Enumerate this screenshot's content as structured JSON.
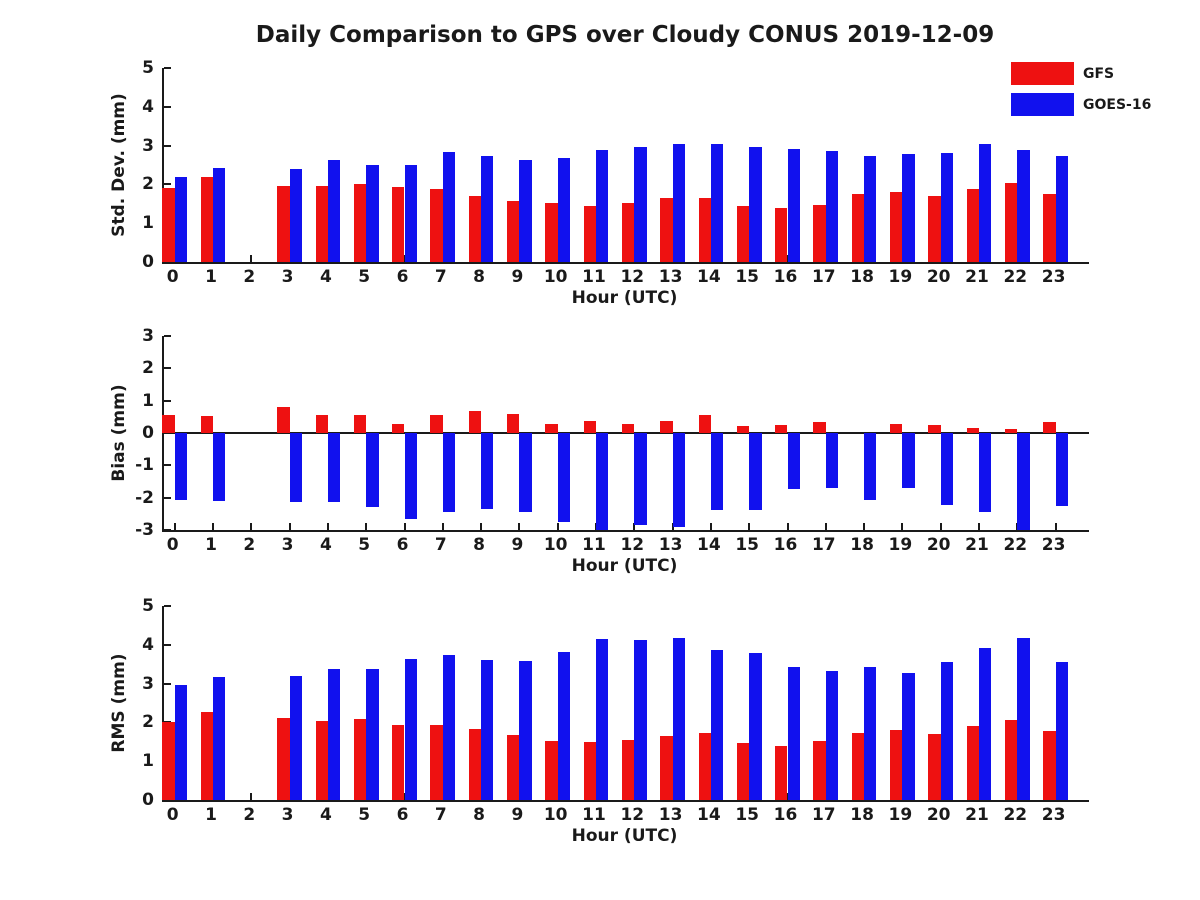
{
  "title": "Daily Comparison to GPS over Cloudy CONUS 2019-12-09",
  "legend": {
    "position": "top-right",
    "items": [
      {
        "label": "GFS",
        "color": "#ee1111"
      },
      {
        "label": "GOES-16",
        "color": "#1111ee"
      }
    ]
  },
  "colors": {
    "gfs_red": "#ee1111",
    "goes_blue": "#1111ee",
    "axis": "#1a1a1a"
  },
  "chart_data": [
    {
      "type": "bar",
      "panel": "std_dev",
      "ylabel": "Std. Dev. (mm)",
      "xlabel": "Hour (UTC)",
      "ylim": [
        0,
        5
      ],
      "yticks": [
        0,
        1,
        2,
        3,
        4,
        5
      ],
      "grid": false,
      "categories": [
        0,
        1,
        2,
        3,
        4,
        5,
        6,
        7,
        8,
        9,
        10,
        11,
        12,
        13,
        14,
        15,
        16,
        17,
        18,
        19,
        20,
        21,
        22,
        23
      ],
      "series": [
        {
          "name": "GFS",
          "color": "#ee1111",
          "values": [
            1.9,
            2.2,
            null,
            1.95,
            1.95,
            2.0,
            1.93,
            1.87,
            1.71,
            1.57,
            1.52,
            1.44,
            1.52,
            1.64,
            1.64,
            1.44,
            1.38,
            1.46,
            1.75,
            1.8,
            1.7,
            1.87,
            2.04,
            1.75
          ]
        },
        {
          "name": "GOES-16",
          "color": "#1111ee",
          "values": [
            2.2,
            2.42,
            null,
            2.4,
            2.64,
            2.5,
            2.5,
            2.83,
            2.73,
            2.63,
            2.68,
            2.88,
            2.97,
            3.03,
            3.05,
            2.96,
            2.92,
            2.87,
            2.72,
            2.79,
            2.8,
            3.03,
            2.88,
            2.74
          ]
        }
      ]
    },
    {
      "type": "bar",
      "panel": "bias",
      "ylabel": "Bias (mm)",
      "xlabel": "Hour (UTC)",
      "ylim": [
        -3,
        3
      ],
      "yticks": [
        3,
        2,
        1,
        0,
        -1,
        -2,
        -3
      ],
      "grid": false,
      "categories": [
        0,
        1,
        2,
        3,
        4,
        5,
        6,
        7,
        8,
        9,
        10,
        11,
        12,
        13,
        14,
        15,
        16,
        17,
        18,
        19,
        20,
        21,
        22,
        23
      ],
      "series": [
        {
          "name": "GFS",
          "color": "#ee1111",
          "values": [
            0.57,
            0.54,
            null,
            0.8,
            0.55,
            0.57,
            0.27,
            0.57,
            0.67,
            0.6,
            0.28,
            0.36,
            0.27,
            0.36,
            0.55,
            0.23,
            0.25,
            0.34,
            0.0,
            0.27,
            0.24,
            0.16,
            0.13,
            0.35
          ]
        },
        {
          "name": "GOES-16",
          "color": "#1111ee",
          "values": [
            -2.08,
            -2.1,
            null,
            -2.13,
            -2.13,
            -2.28,
            -2.65,
            -2.45,
            -2.36,
            -2.44,
            -2.76,
            -3.0,
            -2.84,
            -2.9,
            -2.38,
            -2.38,
            -1.74,
            -1.7,
            -2.08,
            -1.7,
            -2.24,
            -2.45,
            -3.0,
            -2.27
          ]
        }
      ]
    },
    {
      "type": "bar",
      "panel": "rms",
      "ylabel": "RMS (mm)",
      "xlabel": "Hour (UTC)",
      "ylim": [
        0,
        5
      ],
      "yticks": [
        0,
        1,
        2,
        3,
        4,
        5
      ],
      "grid": false,
      "categories": [
        0,
        1,
        2,
        3,
        4,
        5,
        6,
        7,
        8,
        9,
        10,
        11,
        12,
        13,
        14,
        15,
        16,
        17,
        18,
        19,
        20,
        21,
        22,
        23
      ],
      "series": [
        {
          "name": "GFS",
          "color": "#ee1111",
          "values": [
            2.0,
            2.27,
            null,
            2.11,
            2.04,
            2.09,
            1.94,
            1.94,
            1.84,
            1.67,
            1.53,
            1.5,
            1.55,
            1.66,
            1.72,
            1.47,
            1.4,
            1.52,
            1.72,
            1.8,
            1.7,
            1.9,
            2.05,
            1.78
          ]
        },
        {
          "name": "GOES-16",
          "color": "#1111ee",
          "values": [
            2.97,
            3.16,
            null,
            3.2,
            3.37,
            3.37,
            3.63,
            3.74,
            3.6,
            3.58,
            3.82,
            4.15,
            4.13,
            4.18,
            3.87,
            3.8,
            3.43,
            3.33,
            3.42,
            3.27,
            3.56,
            3.93,
            4.18,
            3.55
          ]
        }
      ]
    }
  ]
}
